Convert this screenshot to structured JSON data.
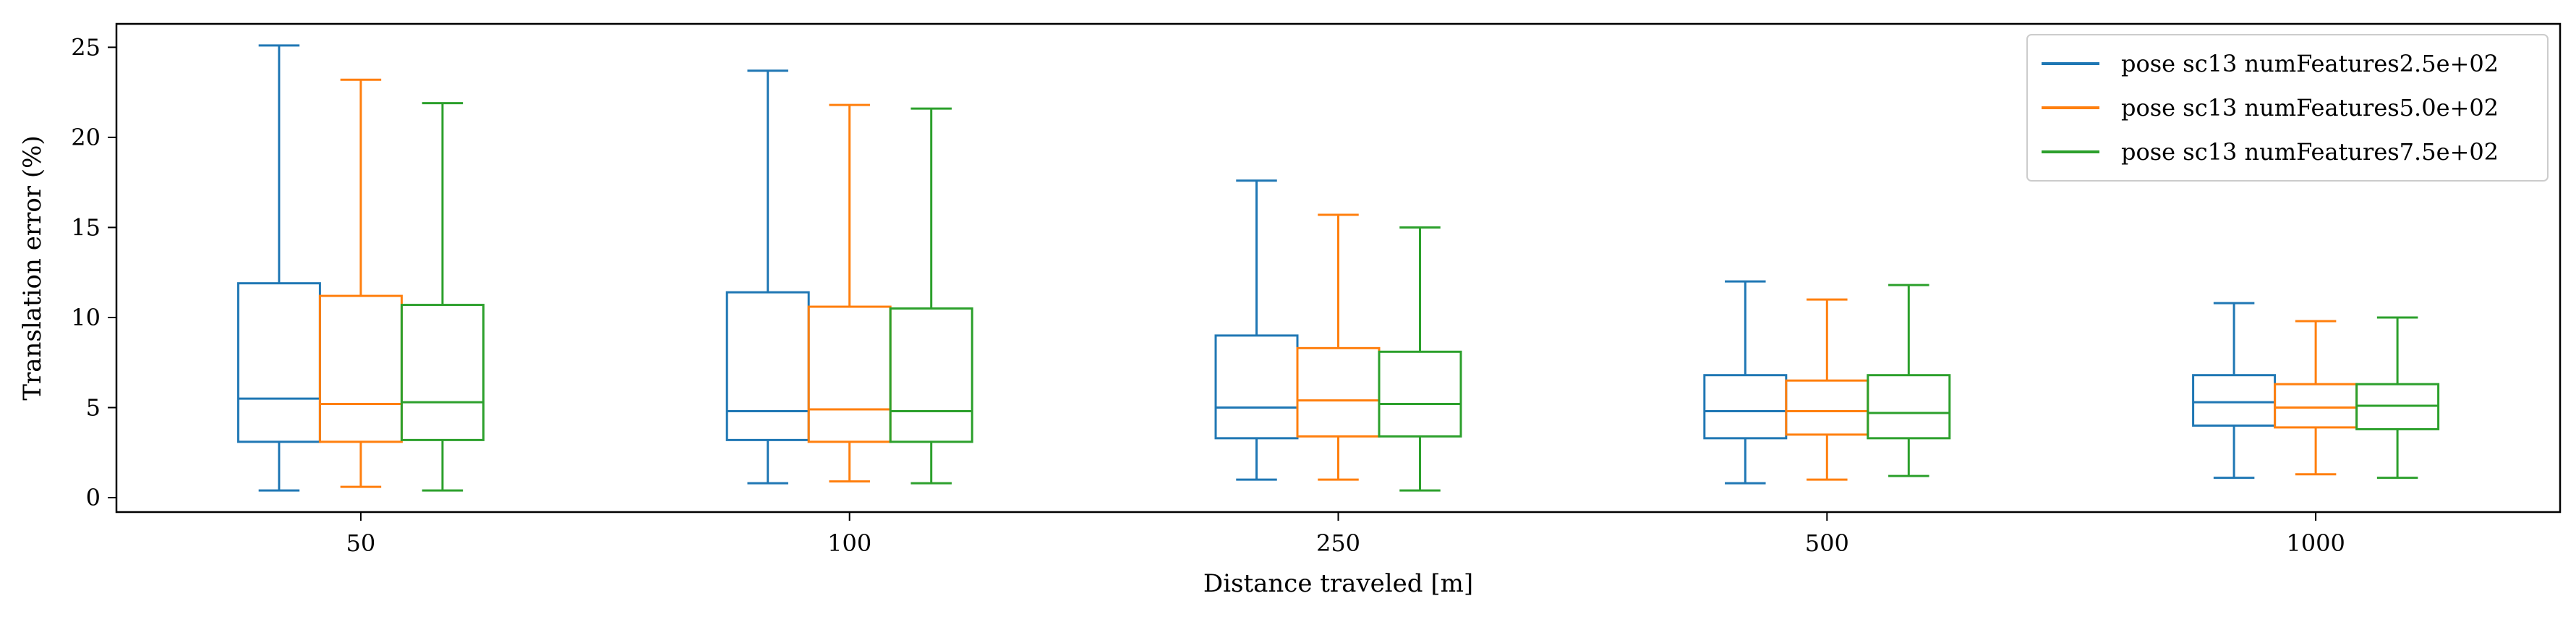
{
  "chart_data": {
    "type": "box",
    "xlabel": "Distance traveled [m]",
    "ylabel": "Translation error (%)",
    "categories": [
      "50",
      "100",
      "250",
      "500",
      "1000"
    ],
    "ylim": [
      -0.8,
      26.3
    ],
    "yticks": [
      0,
      5,
      10,
      15,
      20,
      25
    ],
    "grid": false,
    "legend_position": "top-right",
    "series": [
      {
        "name": "pose sc13 numFeatures2.5e+02",
        "color": "#1f77b4",
        "boxes": [
          {
            "whislo": 0.4,
            "q1": 3.1,
            "med": 5.5,
            "q3": 11.9,
            "whishi": 25.1
          },
          {
            "whislo": 0.8,
            "q1": 3.2,
            "med": 4.8,
            "q3": 11.4,
            "whishi": 23.7
          },
          {
            "whislo": 1.0,
            "q1": 3.3,
            "med": 5.0,
            "q3": 9.0,
            "whishi": 17.6
          },
          {
            "whislo": 0.8,
            "q1": 3.3,
            "med": 4.8,
            "q3": 6.8,
            "whishi": 12.0
          },
          {
            "whislo": 1.1,
            "q1": 4.0,
            "med": 5.3,
            "q3": 6.8,
            "whishi": 10.8
          }
        ]
      },
      {
        "name": "pose sc13 numFeatures5.0e+02",
        "color": "#ff7f0e",
        "boxes": [
          {
            "whislo": 0.6,
            "q1": 3.1,
            "med": 5.2,
            "q3": 11.2,
            "whishi": 23.2
          },
          {
            "whislo": 0.9,
            "q1": 3.1,
            "med": 4.9,
            "q3": 10.6,
            "whishi": 21.8
          },
          {
            "whislo": 1.0,
            "q1": 3.4,
            "med": 5.4,
            "q3": 8.3,
            "whishi": 15.7
          },
          {
            "whislo": 1.0,
            "q1": 3.5,
            "med": 4.8,
            "q3": 6.5,
            "whishi": 11.0
          },
          {
            "whislo": 1.3,
            "q1": 3.9,
            "med": 5.0,
            "q3": 6.3,
            "whishi": 9.8
          }
        ]
      },
      {
        "name": "pose sc13 numFeatures7.5e+02",
        "color": "#2ca02c",
        "boxes": [
          {
            "whislo": 0.4,
            "q1": 3.2,
            "med": 5.3,
            "q3": 10.7,
            "whishi": 21.9
          },
          {
            "whislo": 0.8,
            "q1": 3.1,
            "med": 4.8,
            "q3": 10.5,
            "whishi": 21.6
          },
          {
            "whislo": 0.4,
            "q1": 3.4,
            "med": 5.2,
            "q3": 8.1,
            "whishi": 15.0
          },
          {
            "whislo": 1.2,
            "q1": 3.3,
            "med": 4.7,
            "q3": 6.8,
            "whishi": 11.8
          },
          {
            "whislo": 1.1,
            "q1": 3.8,
            "med": 5.1,
            "q3": 6.3,
            "whishi": 10.0
          }
        ]
      }
    ]
  }
}
